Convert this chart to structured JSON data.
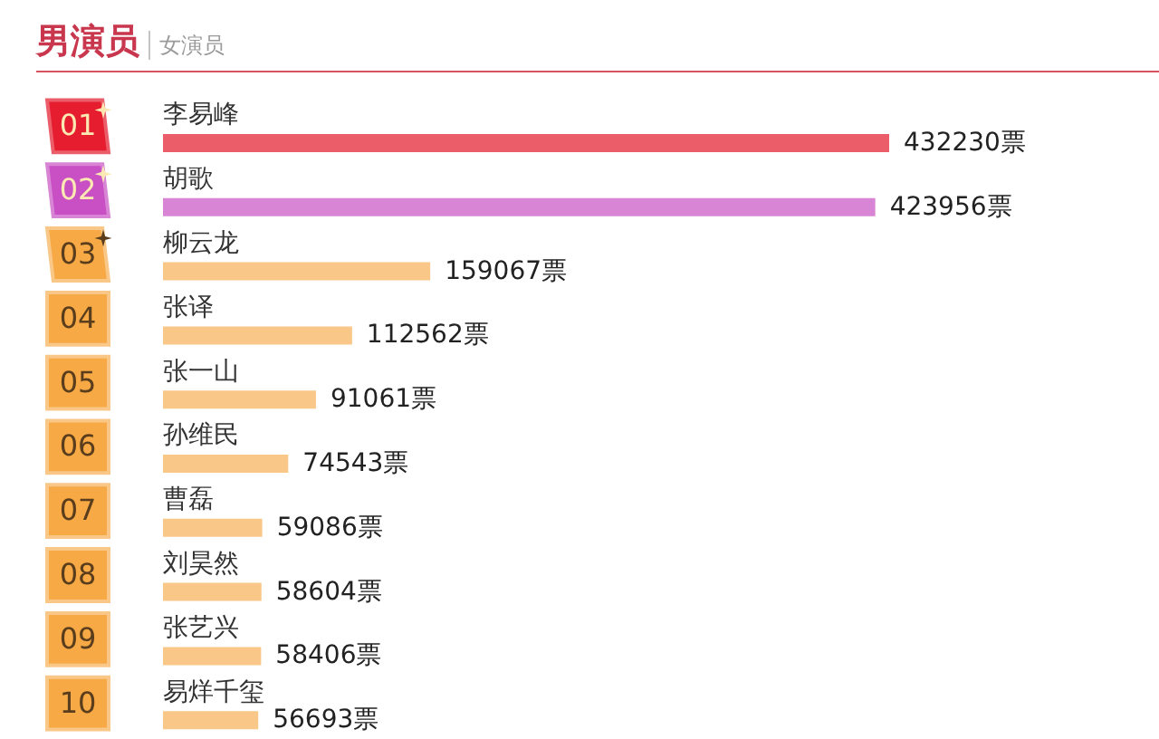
{
  "chart_data": {
    "type": "bar",
    "orientation": "horizontal",
    "title": "男演员",
    "subtitle": "女演员",
    "categories": [
      "李易峰",
      "胡歌",
      "柳云龙",
      "张译",
      "张一山",
      "孙维民",
      "曹磊",
      "刘昊然",
      "张艺兴",
      "易烊千玺"
    ],
    "values": [
      432230,
      423956,
      159067,
      112562,
      91061,
      74543,
      59086,
      58604,
      58406,
      56693
    ],
    "colors": [
      "#ec5d6a",
      "#d985d6",
      "#f9c888",
      "#f9c888",
      "#f9c888",
      "#f9c888",
      "#f9c888",
      "#f9c888",
      "#f9c888",
      "#f9c888"
    ],
    "value_labels": [
      "432230票",
      "423956票",
      "159067票",
      "112562票",
      "91061票",
      "74543票",
      "59086票",
      "58604票",
      "58406票",
      "56693票"
    ],
    "annotations": [
      "01",
      "02",
      "03",
      "04",
      "05",
      "06",
      "07",
      "08",
      "09",
      "10"
    ],
    "tick_labels": "y"
  }
}
